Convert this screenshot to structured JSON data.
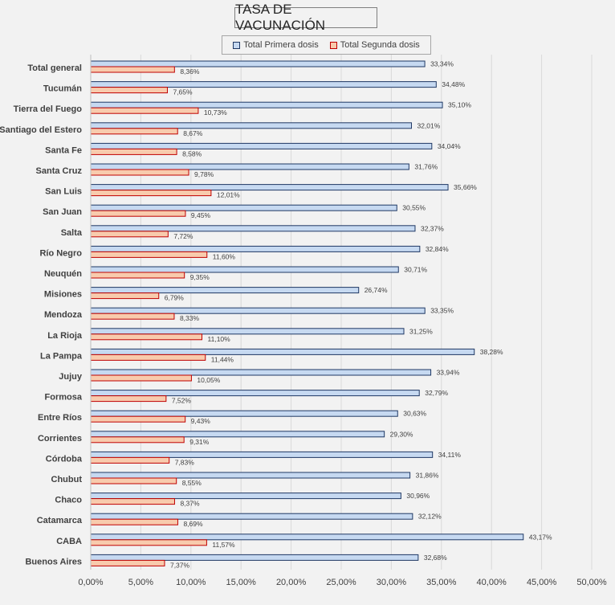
{
  "chart_data": {
    "type": "bar",
    "orientation": "horizontal",
    "title": "TASA DE VACUNACIÓN",
    "categories": [
      "Total general",
      "Tucumán",
      "Tierra del Fuego",
      "Santiago del Estero",
      "Santa Fe",
      "Santa Cruz",
      "San Luis",
      "San Juan",
      "Salta",
      "Río Negro",
      "Neuquén",
      "Misiones",
      "Mendoza",
      "La Rioja",
      "La Pampa",
      "Jujuy",
      "Formosa",
      "Entre Ríos",
      "Corrientes",
      "Córdoba",
      "Chubut",
      "Chaco",
      "Catamarca",
      "CABA",
      "Buenos Aires"
    ],
    "series": [
      {
        "name": "Total Primera dosis",
        "fill": "#c6d9f1",
        "stroke": "#1f3864",
        "values": [
          33.34,
          34.48,
          35.1,
          32.01,
          34.04,
          31.76,
          35.66,
          30.55,
          32.37,
          32.84,
          30.71,
          26.74,
          33.35,
          31.25,
          38.28,
          33.94,
          32.79,
          30.63,
          29.3,
          34.11,
          31.86,
          30.96,
          32.12,
          43.17,
          32.68
        ],
        "labels": [
          "33,34%",
          "34,48%",
          "35,10%",
          "32,01%",
          "34,04%",
          "31,76%",
          "35,66%",
          "30,55%",
          "32,37%",
          "32,84%",
          "30,71%",
          "26,74%",
          "33,35%",
          "31,25%",
          "38,28%",
          "33,94%",
          "32,79%",
          "30,63%",
          "29,30%",
          "34,11%",
          "31,86%",
          "30,96%",
          "32,12%",
          "43,17%",
          "32,68%"
        ]
      },
      {
        "name": "Total Segunda dosis",
        "fill": "#f8cbad",
        "stroke": "#c00000",
        "values": [
          8.36,
          7.65,
          10.73,
          8.67,
          8.58,
          9.78,
          12.01,
          9.45,
          7.72,
          11.6,
          9.35,
          6.79,
          8.33,
          11.1,
          11.44,
          10.05,
          7.52,
          9.43,
          9.31,
          7.83,
          8.55,
          8.37,
          8.69,
          11.57,
          7.37
        ],
        "labels": [
          "8,36%",
          "7,65%",
          "10,73%",
          "8,67%",
          "8,58%",
          "9,78%",
          "12,01%",
          "9,45%",
          "7,72%",
          "11,60%",
          "9,35%",
          "6,79%",
          "8,33%",
          "11,10%",
          "11,44%",
          "10,05%",
          "7,52%",
          "9,43%",
          "9,31%",
          "7,83%",
          "8,55%",
          "8,37%",
          "8,69%",
          "11,57%",
          "7,37%"
        ]
      }
    ],
    "xlim": [
      0,
      50
    ],
    "xticks": [
      0,
      5,
      10,
      15,
      20,
      25,
      30,
      35,
      40,
      45,
      50
    ],
    "xtick_labels": [
      "0,00%",
      "5,00%",
      "10,00%",
      "15,00%",
      "20,00%",
      "25,00%",
      "30,00%",
      "35,00%",
      "40,00%",
      "45,00%",
      "50,00%"
    ],
    "xlabel": "",
    "ylabel": "",
    "grid": true,
    "legend_position": "top"
  },
  "colors": {
    "plot_bg": "#f2f2f2",
    "outer_bg": "#d9d9d9",
    "grid": "#d9d9d9"
  }
}
